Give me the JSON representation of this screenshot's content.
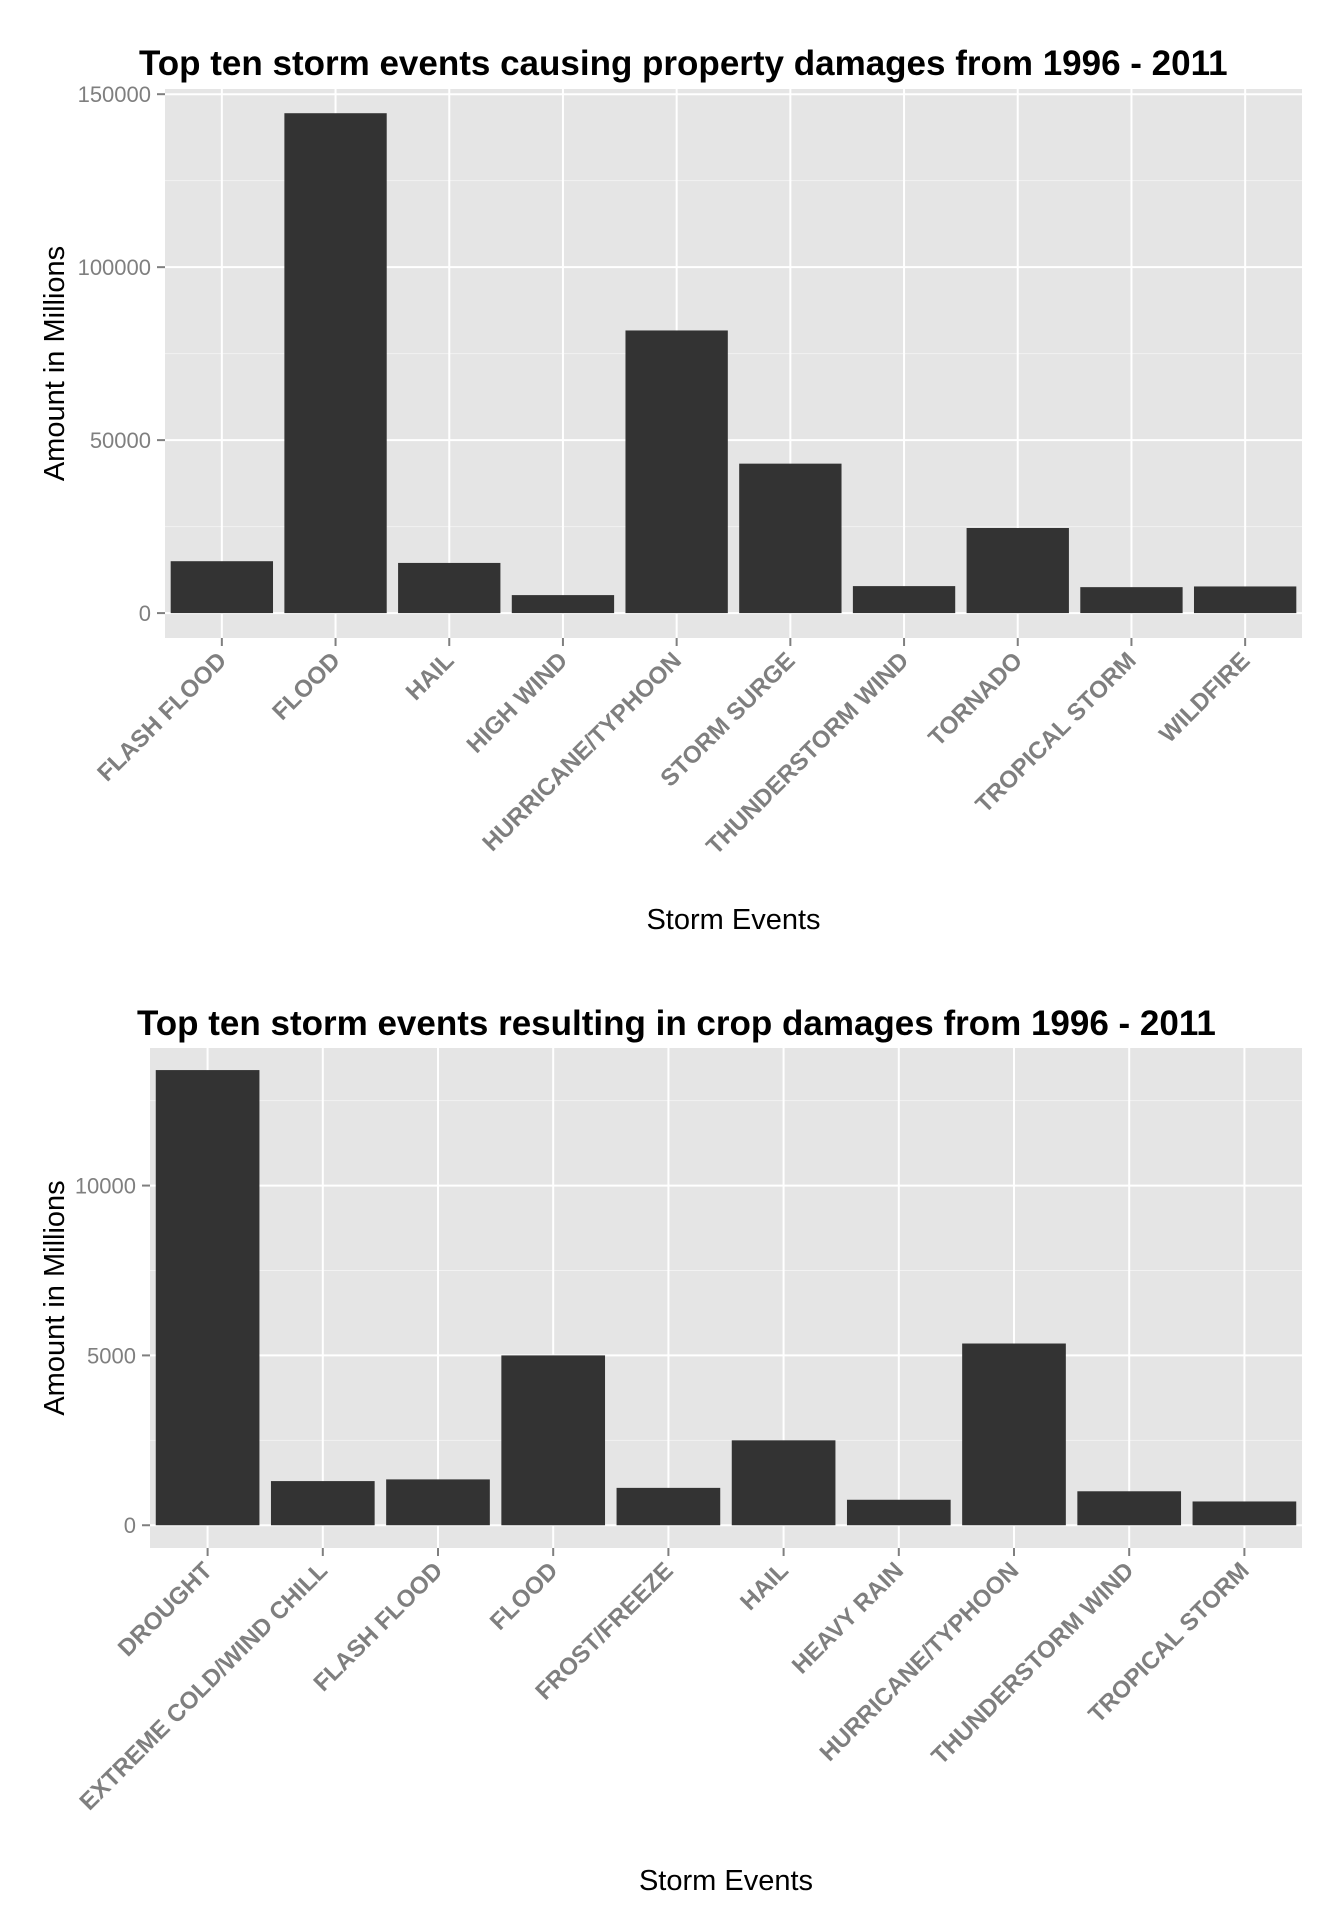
{
  "chart_data": [
    {
      "type": "bar",
      "title": "Top ten storm events causing property damages from 1996 - 2011",
      "xlabel": "Storm Events",
      "ylabel": "Amount in Millions",
      "categories": [
        "FLASH FLOOD",
        "FLOOD",
        "HAIL",
        "HIGH WIND",
        "HURRICANE/TYPHOON",
        "STORM SURGE",
        "THUNDERSTORM WIND",
        "TORNADO",
        "TROPICAL STORM",
        "WILDFIRE"
      ],
      "values": [
        15000,
        144500,
        14500,
        5200,
        81700,
        43200,
        7800,
        24600,
        7500,
        7700
      ],
      "yticks": [
        0,
        50000,
        100000,
        150000
      ],
      "ytick_labels": [
        "0",
        "50000",
        "100000",
        "150000"
      ],
      "ylim": [
        -7200,
        151500
      ],
      "grid": true,
      "legend": "none",
      "colors": {
        "bar": "#333333",
        "panel": "#e5e5e5",
        "grid": "#ffffff",
        "minor_grid": "#f2f2f2"
      }
    },
    {
      "type": "bar",
      "title": "Top ten storm events resulting in crop damages from 1996 - 2011",
      "xlabel": "Storm Events",
      "ylabel": "Amount in Millions",
      "categories": [
        "DROUGHT",
        "EXTREME COLD/WIND CHILL",
        "FLASH FLOOD",
        "FLOOD",
        "FROST/FREEZE",
        "HAIL",
        "HEAVY RAIN",
        "HURRICANE/TYPHOON",
        "THUNDERSTORM WIND",
        "TROPICAL STORM"
      ],
      "values": [
        13400,
        1300,
        1350,
        5000,
        1100,
        2500,
        750,
        5350,
        1000,
        700
      ],
      "yticks": [
        0,
        5000,
        10000
      ],
      "ytick_labels": [
        "0",
        "5000",
        "10000"
      ],
      "ylim": [
        -670,
        14050
      ],
      "grid": true,
      "legend": "none",
      "colors": {
        "bar": "#333333",
        "panel": "#e5e5e5",
        "grid": "#ffffff",
        "minor_grid": "#f2f2f2"
      }
    }
  ]
}
